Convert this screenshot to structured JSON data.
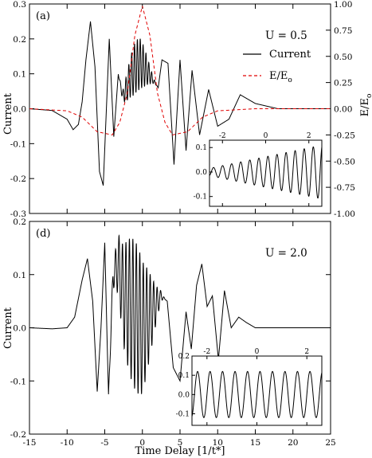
{
  "chart_data": {
    "type": "line",
    "xlabel": "Time Delay [1/t*]",
    "xticks": [
      -15,
      -10,
      -5,
      0,
      5,
      10,
      15,
      20,
      25
    ],
    "xlim": [
      -15,
      25
    ],
    "panels": [
      {
        "tag": "(a)",
        "annotation": "U = 0.5",
        "ylabel": "Current",
        "ylim": [
          -0.3,
          0.3
        ],
        "yticks": [
          -0.3,
          -0.2,
          -0.1,
          0.0,
          0.1,
          0.2,
          0.3
        ],
        "right_axis": {
          "label": "E/E",
          "label_sub": "o",
          "ylim": [
            -1.0,
            1.0
          ],
          "ticks": [
            -1.0,
            -0.75,
            -0.5,
            -0.25,
            0.0,
            0.25,
            0.5,
            0.75,
            1.0
          ]
        },
        "legend": {
          "position": "upper-right",
          "entries": [
            {
              "label": "Current",
              "color": "#000000",
              "style": "solid"
            },
            {
              "label": "E/E",
              "sub": "o",
              "color": "#e00000",
              "style": "dashed"
            }
          ]
        },
        "series": [
          {
            "name": "Current",
            "color": "#000000",
            "style": "solid",
            "x": [
              -15,
              -12,
              -10,
              -9.2,
              -8.5,
              -8.0,
              -7.5,
              -6.9,
              -6.3,
              -5.7,
              -5.2,
              -4.4,
              -3.8,
              -3.2,
              -2.6,
              -2.1,
              -1.6,
              -0.9,
              -0.3,
              0.2,
              0.6,
              1.2,
              1.8,
              2.1,
              2.6,
              3.4,
              4.2,
              5.0,
              5.8,
              6.6,
              7.6,
              8.8,
              10.0,
              11.5,
              13.0,
              15.0,
              18.0,
              21.0,
              25.0
            ],
            "y": [
              0.0,
              -0.005,
              -0.03,
              -0.06,
              -0.045,
              0.02,
              0.14,
              0.25,
              0.12,
              -0.18,
              -0.22,
              0.2,
              -0.08,
              0.1,
              0.035,
              0.06,
              0.09,
              0.12,
              0.13,
              0.12,
              0.11,
              0.09,
              0.07,
              0.06,
              0.14,
              0.13,
              -0.16,
              0.14,
              -0.12,
              0.11,
              -0.075,
              0.055,
              -0.05,
              -0.03,
              0.04,
              0.015,
              0.0,
              0.0,
              0.0
            ],
            "oscillation": {
              "range": [
                -3.5,
                2.1
              ],
              "period": 0.38,
              "amplitude_max": 0.075
            }
          },
          {
            "name": "E/E0",
            "color": "#e00000",
            "style": "dashed",
            "axis": "right",
            "x": [
              -15,
              -10,
              -8,
              -6,
              -4,
              -3,
              -2,
              -1,
              0,
              1,
              2,
              3,
              4,
              6,
              8,
              10,
              15
            ],
            "y": [
              0.0,
              -0.02,
              -0.08,
              -0.22,
              -0.25,
              -0.13,
              0.15,
              0.7,
              0.98,
              0.7,
              0.15,
              -0.13,
              -0.25,
              -0.22,
              -0.08,
              -0.02,
              0.0
            ]
          }
        ],
        "inset": {
          "xticks": [
            -2,
            0,
            2
          ],
          "yticks": [
            -0.1,
            0.0,
            0.1
          ],
          "xlim": [
            -2.6,
            2.6
          ],
          "ylim": [
            -0.14,
            0.13
          ],
          "series": [
            {
              "name": "Current (inset)",
              "color": "#000000",
              "model": "oscillation",
              "period": 0.42,
              "offset": [
                0.0,
                0.0
              ],
              "amplitude": [
                0.015,
                0.11
              ]
            }
          ]
        }
      },
      {
        "tag": "(d)",
        "annotation": "U = 2.0",
        "ylabel": "Current",
        "ylim": [
          -0.2,
          0.2
        ],
        "yticks": [
          -0.2,
          -0.1,
          0.0,
          0.1,
          0.2
        ],
        "series": [
          {
            "name": "Current",
            "color": "#000000",
            "style": "solid",
            "x": [
              -15,
              -12,
              -10,
              -9.0,
              -8.0,
              -7.3,
              -6.6,
              -6.0,
              -5.5,
              -5.0,
              -4.5,
              -3.9,
              -3.2,
              -2.5,
              0.0,
              2.5,
              3.3,
              4.1,
              5.0,
              5.8,
              6.5,
              7.2,
              7.9,
              8.6,
              9.3,
              10.1,
              10.9,
              11.8,
              12.8,
              13.8,
              15.0,
              17.0,
              20.0,
              25.0
            ],
            "y": [
              0.0,
              -0.002,
              0.0,
              0.02,
              0.09,
              0.13,
              0.05,
              -0.12,
              0.0,
              0.16,
              -0.13,
              0.1,
              0.12,
              0.06,
              0.0,
              0.06,
              0.05,
              -0.075,
              -0.1,
              0.03,
              -0.04,
              0.08,
              0.12,
              0.04,
              0.06,
              -0.06,
              0.07,
              0.0,
              0.02,
              0.01,
              0.0,
              0.0,
              0.0,
              0.0
            ],
            "oscillation": {
              "range": [
                -5.0,
                3.2
              ],
              "period": 0.46,
              "amplitude_max": 0.14
            }
          }
        ],
        "inset": {
          "xticks": [
            -2,
            0,
            2
          ],
          "yticks": [
            -0.1,
            0.0,
            0.1,
            0.2
          ],
          "xlim": [
            -2.6,
            2.6
          ],
          "ylim": [
            -0.16,
            0.2
          ],
          "series": [
            {
              "name": "Current (inset)",
              "color": "#000000",
              "model": "oscillation",
              "period": 0.5,
              "offset": [
                0.0,
                0.0
              ],
              "amplitude": [
                0.12,
                0.12
              ]
            }
          ]
        }
      }
    ]
  }
}
